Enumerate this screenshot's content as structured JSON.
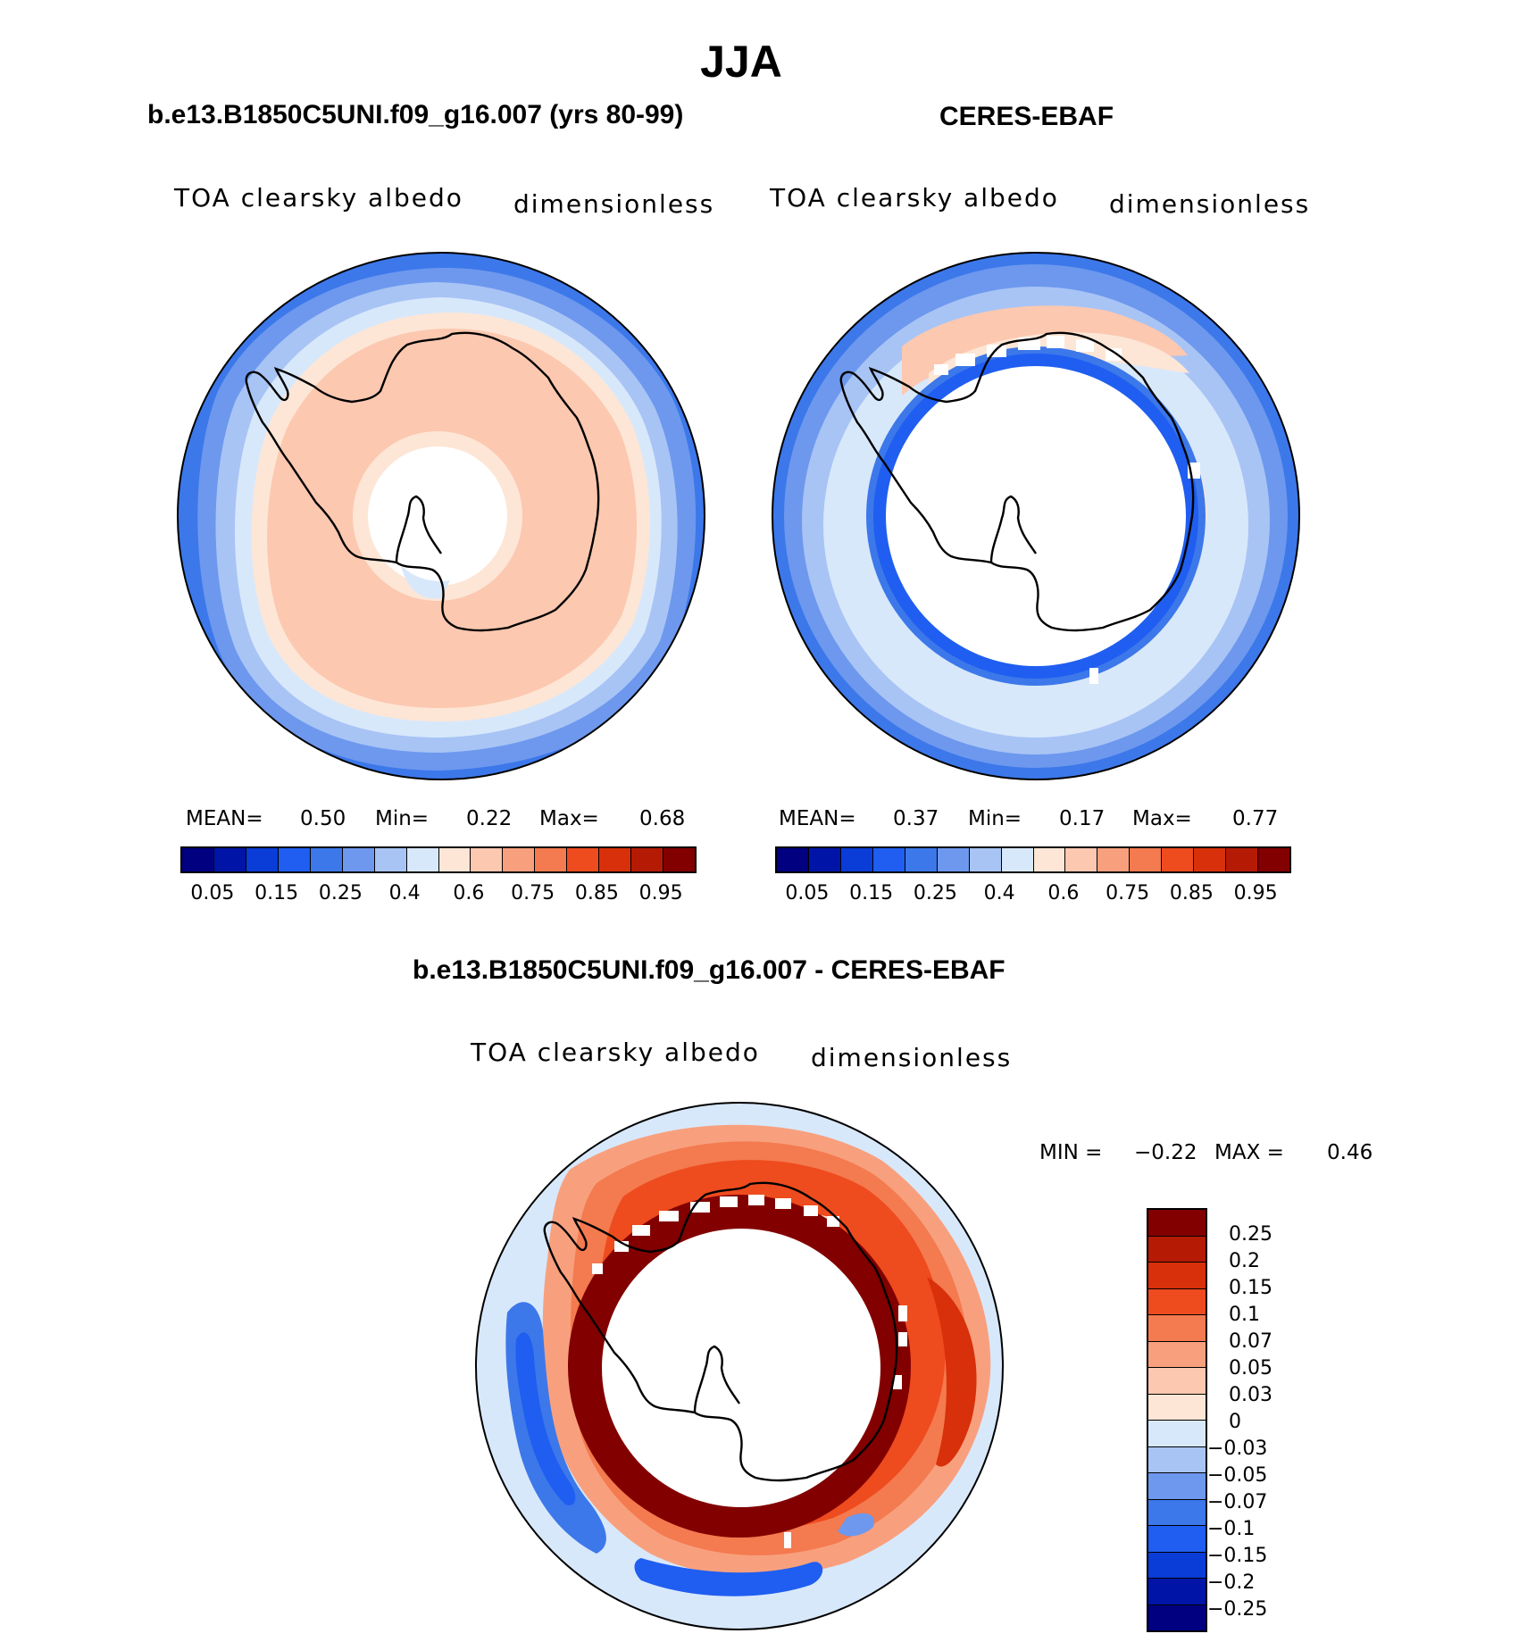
{
  "title": "JJA",
  "palette_abs": [
    "#000080",
    "#0015a8",
    "#0a3cd8",
    "#1f5ef0",
    "#3c78ea",
    "#6d98ee",
    "#a8c4f5",
    "#d8e8fb",
    "#fde6d6",
    "#fcc8b0",
    "#f8a07e",
    "#f47a4f",
    "#ee4b1e",
    "#d8300a",
    "#b51a05",
    "#820000"
  ],
  "palette_diff": [
    "#820000",
    "#b51a05",
    "#d8300a",
    "#ee4b1e",
    "#f47a4f",
    "#f8a07e",
    "#fcc8b0",
    "#fde6d6",
    "#d8e8fb",
    "#a8c4f5",
    "#6d98ee",
    "#3c78ea",
    "#1f5ef0",
    "#0a3cd8",
    "#0015a8",
    "#000080"
  ],
  "panels": {
    "model": {
      "title": "b.e13.B1850C5UNI.f09_g16.007 (yrs 80-99)",
      "variable": "TOA clearsky albedo",
      "units": "dimensionless",
      "mean_label": "MEAN=",
      "mean": "0.50",
      "min_label": "Min=",
      "min": "0.22",
      "max_label": "Max=",
      "max": "0.68"
    },
    "obs": {
      "title": "CERES-EBAF",
      "variable": "TOA clearsky albedo",
      "units": "dimensionless",
      "mean_label": "MEAN=",
      "mean": "0.37",
      "min_label": "Min=",
      "min": "0.17",
      "max_label": "Max=",
      "max": "0.77"
    },
    "diff": {
      "title": "b.e13.B1850C5UNI.f09_g16.007 - CERES-EBAF",
      "variable": "TOA clearsky albedo",
      "units": "dimensionless",
      "min_label": "MIN =",
      "min": "−0.22",
      "max_label": "MAX =",
      "max": "0.46"
    }
  },
  "colorbar_abs_ticks": [
    "0.05",
    "0.15",
    "0.25",
    "0.4",
    "0.6",
    "0.75",
    "0.85",
    "0.95"
  ],
  "colorbar_diff_ticks": [
    "0.25",
    "0.2",
    "0.15",
    "0.1",
    "0.07",
    "0.05",
    "0.03",
    "0",
    "−0.03",
    "−0.05",
    "−0.07",
    "−0.1",
    "−0.15",
    "−0.2",
    "−0.25"
  ]
}
